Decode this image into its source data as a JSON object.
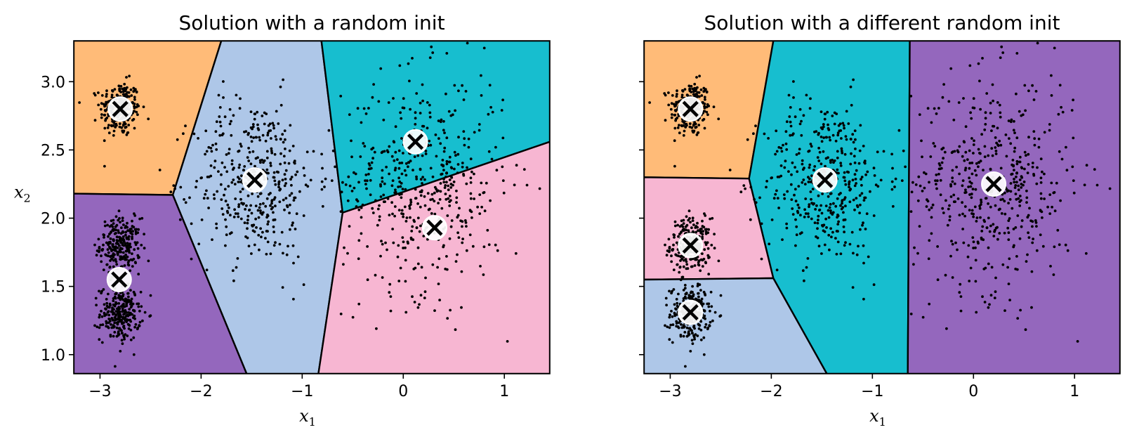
{
  "chart_data": [
    {
      "type": "scatter",
      "title": "Solution with a random init",
      "xlabel": "x",
      "xlabel_sub": "1",
      "ylabel": "x",
      "ylabel_sub": "2",
      "xlim": [
        -3.26,
        1.45
      ],
      "ylim": [
        0.86,
        3.3
      ],
      "xticks": [
        -3,
        -2,
        -1,
        0,
        1
      ],
      "xtick_labels": [
        "−3",
        "−2",
        "−1",
        "0",
        "1"
      ],
      "yticks": [
        1.0,
        1.5,
        2.0,
        2.5,
        3.0
      ],
      "ytick_labels": [
        "1.0",
        "1.5",
        "2.0",
        "2.5",
        "3.0"
      ],
      "clusters": [
        {
          "name": "",
          "color": "#ffbb78"
        },
        {
          "name": "",
          "color": "#aec7e8"
        },
        {
          "name": "",
          "color": "#17becf"
        },
        {
          "name": "",
          "color": "#9467bd"
        },
        {
          "name": "",
          "color": "#f7b6d2"
        }
      ],
      "centroids": [
        [
          -2.8,
          2.8
        ],
        [
          -1.47,
          2.28
        ],
        [
          0.12,
          2.56
        ],
        [
          -2.81,
          1.55
        ],
        [
          0.31,
          1.93
        ]
      ],
      "region_vertices": [
        [
          [
            -3.26,
            3.3
          ],
          [
            -1.8,
            3.3
          ],
          [
            -2.28,
            2.17
          ],
          [
            -3.26,
            2.18
          ]
        ],
        [
          [
            -1.8,
            3.3
          ],
          [
            -0.81,
            3.3
          ],
          [
            -0.6,
            2.04
          ],
          [
            -0.84,
            0.86
          ],
          [
            -1.55,
            0.86
          ],
          [
            -2.28,
            2.17
          ]
        ],
        [
          [
            -0.81,
            3.3
          ],
          [
            1.45,
            3.3
          ],
          [
            1.45,
            2.56
          ],
          [
            -0.6,
            2.04
          ]
        ],
        [
          [
            -3.26,
            2.18
          ],
          [
            -2.28,
            2.17
          ],
          [
            -1.55,
            0.86
          ],
          [
            -3.26,
            0.86
          ]
        ],
        [
          [
            -0.6,
            2.04
          ],
          [
            1.45,
            2.56
          ],
          [
            1.45,
            0.86
          ],
          [
            -0.84,
            0.86
          ]
        ]
      ],
      "point_clouds": [
        {
          "center": [
            -2.8,
            2.8
          ],
          "spread": [
            0.1,
            0.1
          ],
          "count": 250
        },
        {
          "center": [
            -2.8,
            1.8
          ],
          "spread": [
            0.1,
            0.1
          ],
          "count": 250
        },
        {
          "center": [
            -2.8,
            1.3
          ],
          "spread": [
            0.1,
            0.1
          ],
          "count": 250
        },
        {
          "center": [
            -1.47,
            2.28
          ],
          "spread": [
            0.3,
            0.3
          ],
          "count": 400
        },
        {
          "center": [
            0.2,
            2.25
          ],
          "spread": [
            0.4,
            0.4
          ],
          "count": 500
        }
      ]
    },
    {
      "type": "scatter",
      "title": "Solution with a different random init",
      "xlabel": "x",
      "xlabel_sub": "1",
      "ylabel": "",
      "ylabel_sub": "",
      "xlim": [
        -3.26,
        1.45
      ],
      "ylim": [
        0.86,
        3.3
      ],
      "xticks": [
        -3,
        -2,
        -1,
        0,
        1
      ],
      "xtick_labels": [
        "−3",
        "−2",
        "−1",
        "0",
        "1"
      ],
      "yticks": [
        1.0,
        1.5,
        2.0,
        2.5,
        3.0
      ],
      "ytick_labels": [],
      "clusters": [
        {
          "name": "",
          "color": "#ffbb78"
        },
        {
          "name": "",
          "color": "#f7b6d2"
        },
        {
          "name": "",
          "color": "#aec7e8"
        },
        {
          "name": "",
          "color": "#17becf"
        },
        {
          "name": "",
          "color": "#9467bd"
        }
      ],
      "centroids": [
        [
          -2.8,
          2.8
        ],
        [
          -2.8,
          1.8
        ],
        [
          -2.8,
          1.31
        ],
        [
          -1.47,
          2.28
        ],
        [
          0.2,
          2.25
        ]
      ],
      "region_vertices": [
        [
          [
            -3.26,
            3.3
          ],
          [
            -1.98,
            3.3
          ],
          [
            -2.22,
            2.29
          ],
          [
            -3.26,
            2.3
          ]
        ],
        [
          [
            -3.26,
            2.3
          ],
          [
            -2.22,
            2.29
          ],
          [
            -1.98,
            1.56
          ],
          [
            -3.26,
            1.55
          ]
        ],
        [
          [
            -3.26,
            1.55
          ],
          [
            -1.98,
            1.56
          ],
          [
            -1.45,
            0.86
          ],
          [
            -3.26,
            0.86
          ]
        ],
        [
          [
            -1.98,
            3.3
          ],
          [
            -0.63,
            3.3
          ],
          [
            -0.65,
            0.86
          ],
          [
            -1.45,
            0.86
          ],
          [
            -1.98,
            1.56
          ],
          [
            -2.22,
            2.29
          ]
        ],
        [
          [
            -0.63,
            3.3
          ],
          [
            1.45,
            3.3
          ],
          [
            1.45,
            0.86
          ],
          [
            -0.65,
            0.86
          ]
        ]
      ],
      "point_clouds": [
        {
          "center": [
            -2.8,
            2.8
          ],
          "spread": [
            0.1,
            0.1
          ],
          "count": 250
        },
        {
          "center": [
            -2.8,
            1.8
          ],
          "spread": [
            0.1,
            0.1
          ],
          "count": 250
        },
        {
          "center": [
            -2.8,
            1.3
          ],
          "spread": [
            0.1,
            0.1
          ],
          "count": 250
        },
        {
          "center": [
            -1.47,
            2.28
          ],
          "spread": [
            0.3,
            0.3
          ],
          "count": 400
        },
        {
          "center": [
            0.2,
            2.25
          ],
          "spread": [
            0.4,
            0.4
          ],
          "count": 500
        }
      ]
    }
  ]
}
